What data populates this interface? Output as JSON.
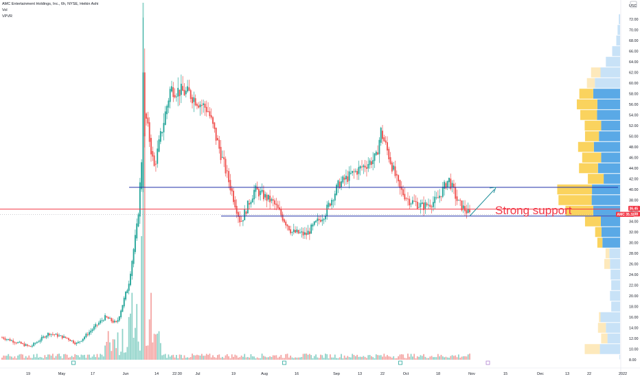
{
  "header": {
    "symbol_line": "AMC Entertainment Holdings, Inc., 6h, NYSE, Heikin Ashi",
    "vol_label": "Vol",
    "vpvr_label": "VPVR"
  },
  "price_axis": {
    "currency": "USD",
    "ticks": [
      "72.00",
      "70.00",
      "68.00",
      "66.00",
      "64.00",
      "62.00",
      "60.00",
      "58.00",
      "56.00",
      "54.00",
      "52.00",
      "50.00",
      "48.00",
      "46.00",
      "44.00",
      "42.00",
      "40.00",
      "38.00",
      "36.00",
      "34.00",
      "32.00",
      "30.00",
      "28.00",
      "26.00",
      "24.00",
      "22.00",
      "20.00",
      "18.00",
      "16.00",
      "14.00",
      "12.00",
      "10.00",
      "8.00"
    ],
    "tags": [
      {
        "text": "36.45",
        "value": 36.45,
        "color": "#f23645"
      },
      {
        "text": "35.38",
        "value": 35.38,
        "color": "#f23645"
      },
      {
        "text": "AMC",
        "value": 35.32,
        "color": "#f23645",
        "value_text": "35.32"
      }
    ]
  },
  "time_axis": {
    "labels": [
      "19",
      "May",
      "17",
      "Jun",
      "14",
      "22:30",
      "Jul",
      "19",
      "Aug",
      "16",
      "Sep",
      "13",
      "22",
      "Oct",
      "18",
      "Nov",
      "15",
      "Dec",
      "13",
      "22",
      "2022"
    ]
  },
  "annotations": {
    "support_text": "Strong support",
    "upper_line_price": 40.4,
    "lower_line_price": 35.0,
    "red_line_price": 36.3,
    "line_colors": {
      "support": "#1f2fa8",
      "red": "#f23645",
      "arrow": "#1e8f9a",
      "support_text": "#f23645"
    }
  },
  "colors": {
    "up": "#26a69a",
    "down": "#ef5350",
    "vol_up": "#8fd3c9",
    "vol_down": "#f4a5a3",
    "vp_blue": "#5aa9e6",
    "vp_blue_light": "#c8e2f7",
    "vp_yellow": "#fad35e",
    "vp_yellow_light": "#fde9bc"
  },
  "chart_data": {
    "type": "candlestick",
    "title": "AMC Entertainment Holdings, Inc., 6h, NYSE, Heikin Ashi",
    "ylim": [
      7,
      73
    ],
    "price_path_keyframes": [
      {
        "t": 0.0,
        "p": 12.2
      },
      {
        "t": 0.06,
        "p": 10.4
      },
      {
        "t": 0.1,
        "p": 13.0
      },
      {
        "t": 0.14,
        "p": 12.0
      },
      {
        "t": 0.16,
        "p": 11.0
      },
      {
        "t": 0.19,
        "p": 13.5
      },
      {
        "t": 0.22,
        "p": 16.0
      },
      {
        "t": 0.245,
        "p": 14.8
      },
      {
        "t": 0.27,
        "p": 22.0
      },
      {
        "t": 0.29,
        "p": 34.0
      },
      {
        "t": 0.305,
        "p": 55.0
      },
      {
        "t": 0.325,
        "p": 44.0
      },
      {
        "t": 0.36,
        "p": 59.0
      },
      {
        "t": 0.4,
        "p": 58.0
      },
      {
        "t": 0.44,
        "p": 55.0
      },
      {
        "t": 0.48,
        "p": 43.0
      },
      {
        "t": 0.51,
        "p": 33.8
      },
      {
        "t": 0.54,
        "p": 40.0
      },
      {
        "t": 0.58,
        "p": 37.5
      },
      {
        "t": 0.62,
        "p": 32.0
      },
      {
        "t": 0.65,
        "p": 31.5
      },
      {
        "t": 0.69,
        "p": 35.5
      },
      {
        "t": 0.72,
        "p": 41.0
      },
      {
        "t": 0.75,
        "p": 43.0
      },
      {
        "t": 0.8,
        "p": 46.0
      },
      {
        "t": 0.81,
        "p": 51.0
      },
      {
        "t": 0.85,
        "p": 40.0
      },
      {
        "t": 0.87,
        "p": 38.0
      },
      {
        "t": 0.9,
        "p": 36.8
      },
      {
        "t": 0.93,
        "p": 38.0
      },
      {
        "t": 0.955,
        "p": 42.0
      },
      {
        "t": 0.975,
        "p": 37.5
      },
      {
        "t": 1.0,
        "p": 35.3
      }
    ],
    "volume_profile": [
      {
        "low": 8,
        "high": 9,
        "up": 2,
        "down": 0
      },
      {
        "low": 9,
        "high": 11,
        "up": 64,
        "down": 48
      },
      {
        "low": 11,
        "high": 13,
        "up": 40,
        "down": 20
      },
      {
        "low": 13,
        "high": 15,
        "up": 45,
        "down": 25
      },
      {
        "low": 15,
        "high": 17,
        "up": 62,
        "down": 5
      },
      {
        "low": 17,
        "high": 19,
        "up": 28,
        "down": 0
      },
      {
        "low": 19,
        "high": 21,
        "up": 32,
        "down": 0
      },
      {
        "low": 21,
        "high": 23,
        "up": 28,
        "down": 0
      },
      {
        "low": 23,
        "high": 25,
        "up": 30,
        "down": 0
      },
      {
        "low": 25,
        "high": 27,
        "up": 32,
        "down": 18
      },
      {
        "low": 27,
        "high": 29,
        "up": 34,
        "down": 12
      },
      {
        "low": 29,
        "high": 31,
        "up": 56,
        "down": 16
      },
      {
        "low": 31,
        "high": 33,
        "up": 59,
        "down": 20
      },
      {
        "low": 33,
        "high": 35,
        "up": 61,
        "down": 50
      },
      {
        "low": 35,
        "high": 37,
        "up": 85,
        "down": 88
      },
      {
        "low": 37,
        "high": 39,
        "up": 90,
        "down": 105
      },
      {
        "low": 39,
        "high": 41,
        "up": 89,
        "down": 110
      },
      {
        "low": 41,
        "high": 43,
        "up": 52,
        "down": 50
      },
      {
        "low": 43,
        "high": 45,
        "up": 70,
        "down": 60
      },
      {
        "low": 45,
        "high": 47,
        "up": 60,
        "down": 60
      },
      {
        "low": 47,
        "high": 49,
        "up": 83,
        "down": 50
      },
      {
        "low": 49,
        "high": 51,
        "up": 67,
        "down": 44
      },
      {
        "low": 51,
        "high": 53,
        "up": 60,
        "down": 52
      },
      {
        "low": 53,
        "high": 55,
        "up": 73,
        "down": 53
      },
      {
        "low": 55,
        "high": 57,
        "up": 72,
        "down": 65
      },
      {
        "low": 57,
        "high": 59,
        "up": 85,
        "down": 44
      },
      {
        "low": 59,
        "high": 61,
        "up": 80,
        "down": 25
      },
      {
        "low": 61,
        "high": 63,
        "up": 62,
        "down": 30
      },
      {
        "low": 63,
        "high": 65,
        "up": 45,
        "down": 0
      },
      {
        "low": 65,
        "high": 67,
        "up": 25,
        "down": 0
      },
      {
        "low": 67,
        "high": 69,
        "up": 12,
        "down": 0
      },
      {
        "low": 69,
        "high": 71,
        "up": 8,
        "down": 0
      },
      {
        "low": 71,
        "high": 73,
        "up": 4,
        "down": 0
      }
    ]
  }
}
